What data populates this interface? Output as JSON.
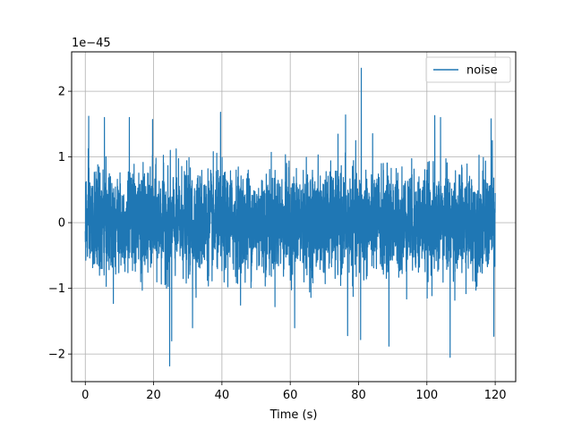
{
  "chart_data": {
    "type": "line",
    "title": "",
    "xlabel": "Time (s)",
    "ylabel": "",
    "offset_text": "1e−45",
    "xlim": [
      -4,
      126
    ],
    "ylim": [
      -2.42,
      2.6
    ],
    "x_ticks": [
      0,
      20,
      40,
      60,
      80,
      100,
      120
    ],
    "x_tick_labels": [
      "0",
      "20",
      "40",
      "60",
      "80",
      "100",
      "120"
    ],
    "y_ticks": [
      -2,
      -1,
      0,
      1,
      2
    ],
    "y_tick_labels": [
      "−2",
      "−1",
      "0",
      "1",
      "2"
    ],
    "grid": true,
    "legend_position": "top-right",
    "line_color": "#1f77b4",
    "series": [
      {
        "name": "noise",
        "x_range": [
          0,
          120
        ],
        "typical_amplitude": 0.9,
        "peaks": [
          {
            "x": 80.8,
            "y": 2.35
          },
          {
            "x": 24.7,
            "y": -2.18
          },
          {
            "x": 106.8,
            "y": -2.05
          },
          {
            "x": 88.9,
            "y": -1.88
          },
          {
            "x": 80.6,
            "y": -1.78
          },
          {
            "x": 76.8,
            "y": -1.72
          },
          {
            "x": 119.6,
            "y": -1.73
          },
          {
            "x": 1.0,
            "y": 1.62
          },
          {
            "x": 5.6,
            "y": 1.6
          },
          {
            "x": 12.9,
            "y": 1.6
          },
          {
            "x": 19.7,
            "y": 1.57
          },
          {
            "x": 39.6,
            "y": 1.68
          },
          {
            "x": 76.2,
            "y": 1.64
          },
          {
            "x": 102.3,
            "y": 1.63
          },
          {
            "x": 104.0,
            "y": 1.6
          },
          {
            "x": 118.8,
            "y": 1.58
          },
          {
            "x": 25.3,
            "y": -1.8
          },
          {
            "x": 31.4,
            "y": -1.6
          },
          {
            "x": 61.3,
            "y": -1.6
          }
        ]
      }
    ]
  }
}
